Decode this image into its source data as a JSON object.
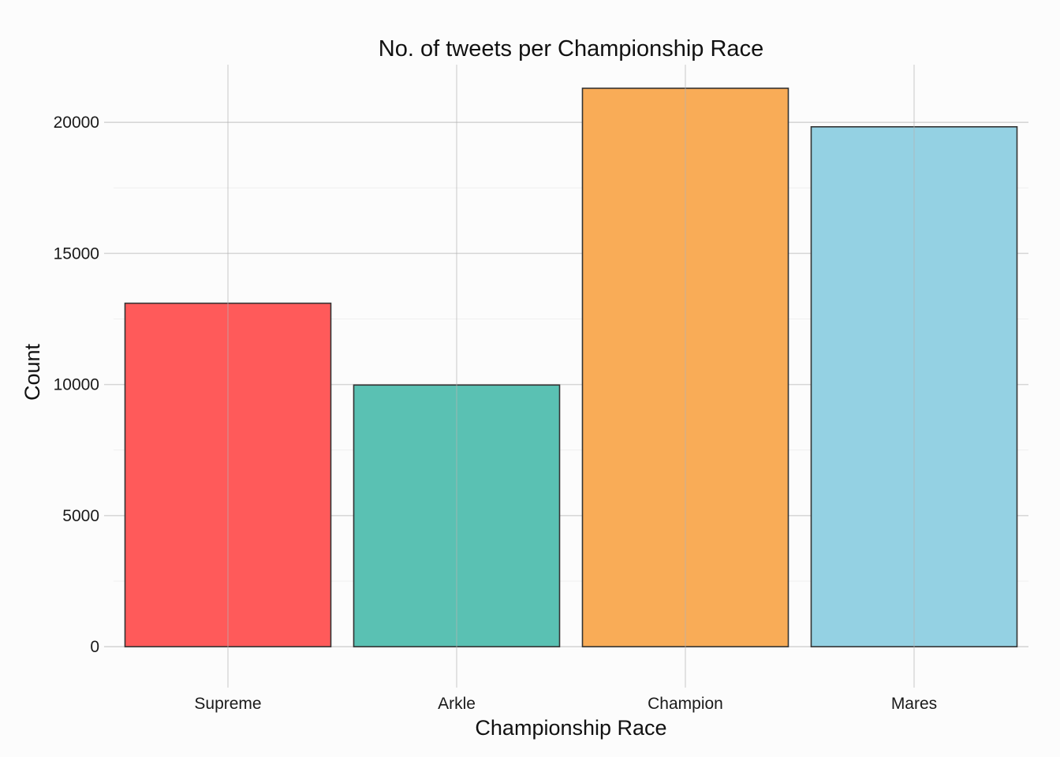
{
  "chart_data": {
    "type": "bar",
    "title": "No. of tweets per Championship Race",
    "xlabel": "Championship Race",
    "ylabel": "Count",
    "categories": [
      "Supreme",
      "Arkle",
      "Champion",
      "Mares"
    ],
    "values": [
      13100,
      9980,
      21300,
      19830
    ],
    "colors": [
      "#ff5a5a",
      "#5ac1b3",
      "#f9ac57",
      "#94d1e3"
    ],
    "ylim": [
      -1200,
      22200
    ],
    "yticks": [
      0,
      5000,
      10000,
      15000,
      20000
    ],
    "grid": true,
    "legend": "none"
  }
}
